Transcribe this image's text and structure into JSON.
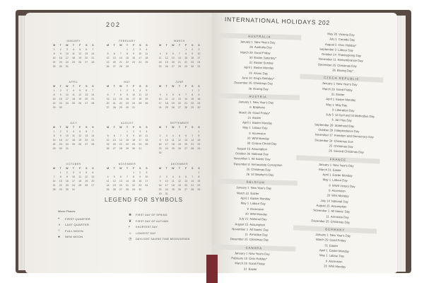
{
  "left_page": {
    "year_title": "202",
    "weekday_headers": [
      "M",
      "T",
      "W",
      "T",
      "F",
      "S",
      "S"
    ],
    "months": [
      {
        "name": "January",
        "start_offset": 0,
        "days": 31
      },
      {
        "name": "February",
        "start_offset": 3,
        "days": 29
      },
      {
        "name": "March",
        "start_offset": 4,
        "days": 31
      },
      {
        "name": "April",
        "start_offset": 0,
        "days": 30
      },
      {
        "name": "May",
        "start_offset": 2,
        "days": 31
      },
      {
        "name": "June",
        "start_offset": 5,
        "days": 30
      },
      {
        "name": "July",
        "start_offset": 0,
        "days": 31
      },
      {
        "name": "August",
        "start_offset": 3,
        "days": 31
      },
      {
        "name": "September",
        "start_offset": 6,
        "days": 30
      },
      {
        "name": "October",
        "start_offset": 1,
        "days": 31
      },
      {
        "name": "November",
        "start_offset": 4,
        "days": 30
      },
      {
        "name": "December",
        "start_offset": 6,
        "days": 31
      }
    ],
    "legend": {
      "title": "LEGEND FOR SYMBOLS",
      "moon_header": "Moon Phases",
      "moon_phases": [
        {
          "icon": "first-quarter-icon",
          "glyph": "◐",
          "label": "First Quarter"
        },
        {
          "icon": "last-quarter-icon",
          "glyph": "◑",
          "label": "Last Quarter"
        },
        {
          "icon": "full-moon-icon",
          "glyph": "○",
          "label": "Full Moon"
        },
        {
          "icon": "new-moon-icon",
          "glyph": "●",
          "label": "New Moon"
        }
      ],
      "symbols": [
        {
          "icon": "spring-icon",
          "glyph": "❀",
          "label": "First day of spring"
        },
        {
          "icon": "autumn-icon",
          "glyph": "❦",
          "label": "First day of autumn"
        },
        {
          "icon": "shortest-day-icon",
          "glyph": "•",
          "label": "Shortest day"
        },
        {
          "icon": "longest-day-icon",
          "glyph": "☼",
          "label": "Longest day"
        },
        {
          "icon": "daylight-saving-icon",
          "glyph": "◷",
          "label": "Daylight saving time begins/ends"
        }
      ]
    }
  },
  "right_page": {
    "title": "INTERNATIONAL HOLIDAYS 202",
    "columns": [
      [
        {
          "country": "Australia",
          "holidays": [
            [
              "January 1",
              "New Year's Day"
            ],
            [
              "26",
              "Australia Day"
            ],
            [
              "March 29",
              "Good Friday"
            ],
            [
              "30",
              "Easter Saturday*"
            ],
            [
              "31",
              "Easter Sunday"
            ],
            [
              "April 1",
              "Easter Monday"
            ],
            [
              "25",
              "Anzac Day"
            ],
            [
              "June 10",
              "King's Birthday*"
            ],
            [
              "December 25",
              "Christmas Day"
            ],
            [
              "26",
              "Boxing Day"
            ]
          ]
        },
        {
          "country": "Austria",
          "holidays": [
            [
              "January 1",
              "New Year's Day"
            ],
            [
              "6",
              "Epiphany"
            ],
            [
              "March 29",
              "Good Friday*"
            ],
            [
              "31",
              "Easter"
            ],
            [
              "April 1",
              "Easter Monday"
            ],
            [
              "May 1",
              "Labour Day"
            ],
            [
              "9",
              "Ascension"
            ],
            [
              "20",
              "Whit Monday"
            ],
            [
              "30",
              "Corpus Christi Day"
            ],
            [
              "August 15",
              "Assumption"
            ],
            [
              "October 26",
              "National Day"
            ],
            [
              "November 1",
              "All Saints' Day"
            ],
            [
              "December 8",
              "Immaculate Conception"
            ],
            [
              "25",
              "Christmas Day"
            ],
            [
              "26",
              "St Stephen's Day"
            ]
          ]
        },
        {
          "country": "Belgium",
          "holidays": [
            [
              "January 1",
              "New Year's Day"
            ],
            [
              "March 31",
              "Easter"
            ],
            [
              "April 1",
              "Easter Monday"
            ],
            [
              "May 1",
              "Labour Day"
            ],
            [
              "9",
              "Ascension"
            ],
            [
              "20",
              "Whit Monday"
            ],
            [
              "July 21",
              "National Day"
            ],
            [
              "August 15",
              "Assumption"
            ],
            [
              "November 1",
              "All Saints' Day"
            ],
            [
              "11",
              "Armistice Day"
            ],
            [
              "December 25",
              "Christmas Day"
            ]
          ]
        },
        {
          "country": "Canada",
          "holidays": [
            [
              "January 1",
              "New Year's Day"
            ],
            [
              "February 19",
              "Civic Holiday*"
            ],
            [
              "March 29",
              "Good Friday"
            ],
            [
              "31",
              "Easter"
            ]
          ]
        }
      ],
      [
        {
          "country": "",
          "holidays": [
            [
              "May 20",
              "Victoria Day"
            ],
            [
              "July 1",
              "Canada Day"
            ],
            [
              "August 5",
              "Civic Holiday*"
            ],
            [
              "September 2",
              "Labour Day"
            ],
            [
              "October 14",
              "Thanksgiving Day"
            ],
            [
              "November 11",
              "Remembrance Day"
            ],
            [
              "December 25",
              "Christmas Day"
            ],
            [
              "26",
              "Boxing Day*"
            ]
          ]
        },
        {
          "country": "Czech Republic",
          "holidays": [
            [
              "January 1",
              "New Year's Day"
            ],
            [
              "March 29",
              "Good Friday"
            ],
            [
              "31",
              "Easter"
            ],
            [
              "April 1",
              "Easter Monday"
            ],
            [
              "May 1",
              "May Day"
            ],
            [
              "8",
              "Liberation Day"
            ],
            [
              "July 5",
              "St Cyril and St Methodius Day"
            ],
            [
              "6",
              "Jan Hus Day"
            ],
            [
              "September 28",
              "Statehood Day"
            ],
            [
              "October 28",
              "Independence Day"
            ],
            [
              "November 17",
              "Freedom and Democracy Day"
            ],
            [
              "December 24",
              "Christmas Eve"
            ],
            [
              "25",
              "Christmas Day"
            ],
            [
              "26",
              "Second Christmas Day"
            ]
          ]
        },
        {
          "country": "France",
          "holidays": [
            [
              "January 1",
              "New Year's Day"
            ],
            [
              "March 31",
              "Easter"
            ],
            [
              "April 1",
              "Easter Monday"
            ],
            [
              "May 1",
              "Labour Day"
            ],
            [
              "8",
              "WWII Victory Day"
            ],
            [
              "9",
              "Ascension"
            ],
            [
              "20",
              "Whit Monday"
            ],
            [
              "July 14",
              "National Day"
            ],
            [
              "August 15",
              "Assumption"
            ],
            [
              "November 1",
              "All Saints' Day"
            ],
            [
              "11",
              "Armistice Day"
            ],
            [
              "December 25",
              "Christmas Day"
            ]
          ]
        },
        {
          "country": "Germany",
          "holidays": [
            [
              "January 1",
              "New Year's Day"
            ],
            [
              "March 29",
              "Good Friday"
            ],
            [
              "31",
              "Easter"
            ],
            [
              "April 1",
              "Easter Monday"
            ],
            [
              "May 1",
              "Labour Day"
            ],
            [
              "9",
              "Ascension"
            ],
            [
              "20",
              "Whit Monday"
            ]
          ]
        }
      ]
    ]
  },
  "colors": {
    "cover": "#5a4a44",
    "page": "#f4f2ec",
    "ribbon": "#7b2b30",
    "country_band": "#e2e0da"
  }
}
